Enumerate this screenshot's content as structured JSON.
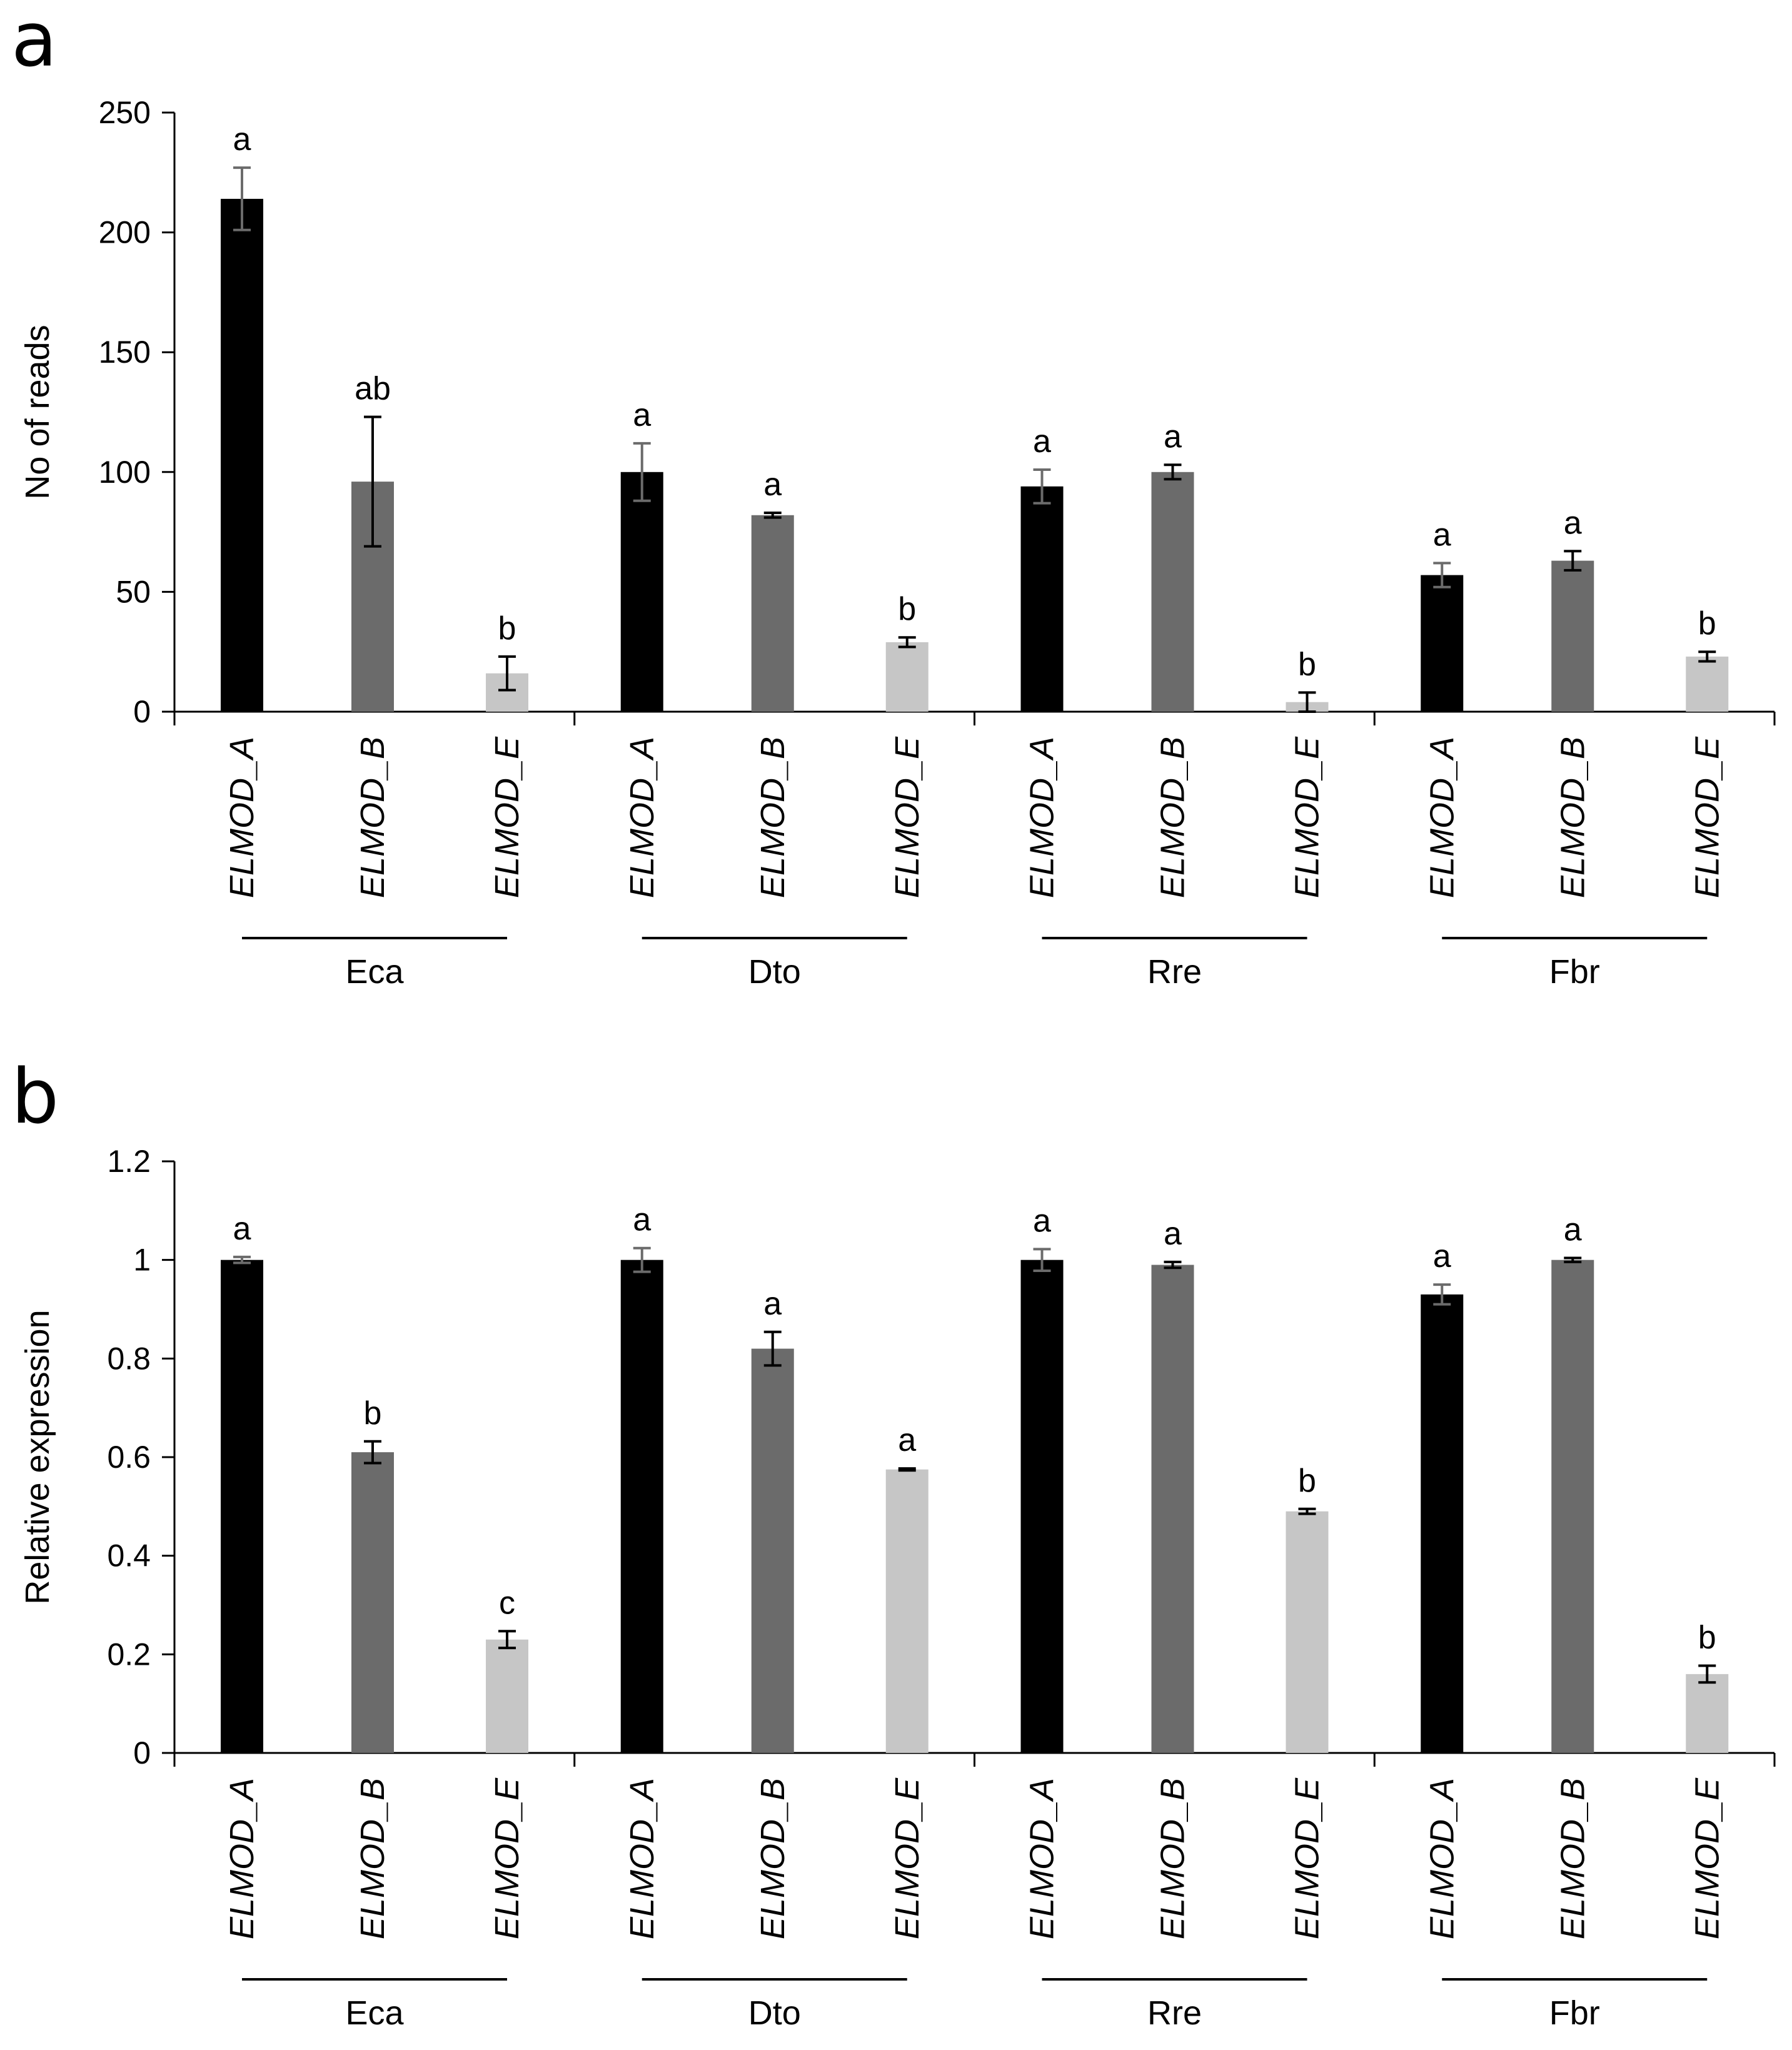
{
  "chart_data": [
    {
      "panel_label": "a",
      "type": "bar",
      "ylabel": "No of reads",
      "xlabel": "",
      "ylim": [
        0,
        250
      ],
      "yticks": [
        "0",
        "50",
        "100",
        "150",
        "200",
        "250"
      ],
      "ytick_values": [
        0,
        50,
        100,
        150,
        200,
        250
      ],
      "groups": [
        {
          "name": "Eca",
          "bars": [
            {
              "label": "ELMOD_A",
              "value": 214,
              "error": 13,
              "sig": "a"
            },
            {
              "label": "ELMOD_B",
              "value": 96,
              "error": 27,
              "sig": "ab"
            },
            {
              "label": "ELMOD_E",
              "value": 16,
              "error": 7,
              "sig": "b"
            }
          ]
        },
        {
          "name": "Dto",
          "bars": [
            {
              "label": "ELMOD_A",
              "value": 100,
              "error": 12,
              "sig": "a"
            },
            {
              "label": "ELMOD_B",
              "value": 82,
              "error": 1,
              "sig": "a"
            },
            {
              "label": "ELMOD_E",
              "value": 29,
              "error": 2,
              "sig": "b"
            }
          ]
        },
        {
          "name": "Rre",
          "bars": [
            {
              "label": "ELMOD_A",
              "value": 94,
              "error": 7,
              "sig": "a"
            },
            {
              "label": "ELMOD_B",
              "value": 100,
              "error": 3,
              "sig": "a"
            },
            {
              "label": "ELMOD_E",
              "value": 4,
              "error": 4,
              "sig": "b"
            }
          ]
        },
        {
          "name": "Fbr",
          "bars": [
            {
              "label": "ELMOD_A",
              "value": 57,
              "error": 5,
              "sig": "a"
            },
            {
              "label": "ELMOD_B",
              "value": 63,
              "error": 4,
              "sig": "a"
            },
            {
              "label": "ELMOD_E",
              "value": 23,
              "error": 2,
              "sig": "b"
            }
          ]
        }
      ]
    },
    {
      "panel_label": "b",
      "type": "bar",
      "ylabel": "Relative expression",
      "xlabel": "",
      "ylim": [
        0,
        1.2
      ],
      "yticks": [
        "0",
        "0.2",
        "0.4",
        "0.6",
        "0.8",
        "1",
        "1.2"
      ],
      "ytick_values": [
        0,
        0.2,
        0.4,
        0.6,
        0.8,
        1,
        1.2
      ],
      "groups": [
        {
          "name": "Eca",
          "bars": [
            {
              "label": "ELMOD_A",
              "value": 1.0,
              "error": 0.006,
              "sig": "a"
            },
            {
              "label": "ELMOD_B",
              "value": 0.61,
              "error": 0.022,
              "sig": "b"
            },
            {
              "label": "ELMOD_E",
              "value": 0.23,
              "error": 0.017,
              "sig": "c"
            }
          ]
        },
        {
          "name": "Dto",
          "bars": [
            {
              "label": "ELMOD_A",
              "value": 1.0,
              "error": 0.024,
              "sig": "a"
            },
            {
              "label": "ELMOD_B",
              "value": 0.82,
              "error": 0.034,
              "sig": "a"
            },
            {
              "label": "ELMOD_E",
              "value": 0.575,
              "error": 0.002,
              "sig": "a"
            }
          ]
        },
        {
          "name": "Rre",
          "bars": [
            {
              "label": "ELMOD_A",
              "value": 1.0,
              "error": 0.022,
              "sig": "a"
            },
            {
              "label": "ELMOD_B",
              "value": 0.99,
              "error": 0.006,
              "sig": "a"
            },
            {
              "label": "ELMOD_E",
              "value": 0.49,
              "error": 0.005,
              "sig": "b"
            }
          ]
        },
        {
          "name": "Fbr",
          "bars": [
            {
              "label": "ELMOD_A",
              "value": 0.93,
              "error": 0.02,
              "sig": "a"
            },
            {
              "label": "ELMOD_B",
              "value": 1.0,
              "error": 0.004,
              "sig": "a"
            },
            {
              "label": "ELMOD_E",
              "value": 0.16,
              "error": 0.017,
              "sig": "b"
            }
          ]
        }
      ]
    }
  ],
  "colors": {
    "ELMOD_A": "#000000",
    "ELMOD_B": "#6b6b6b",
    "ELMOD_E": "#c6c6c6",
    "error_bar_light": "#6b6b6b",
    "error_bar_dark": "#000000",
    "axis": "#000000"
  }
}
